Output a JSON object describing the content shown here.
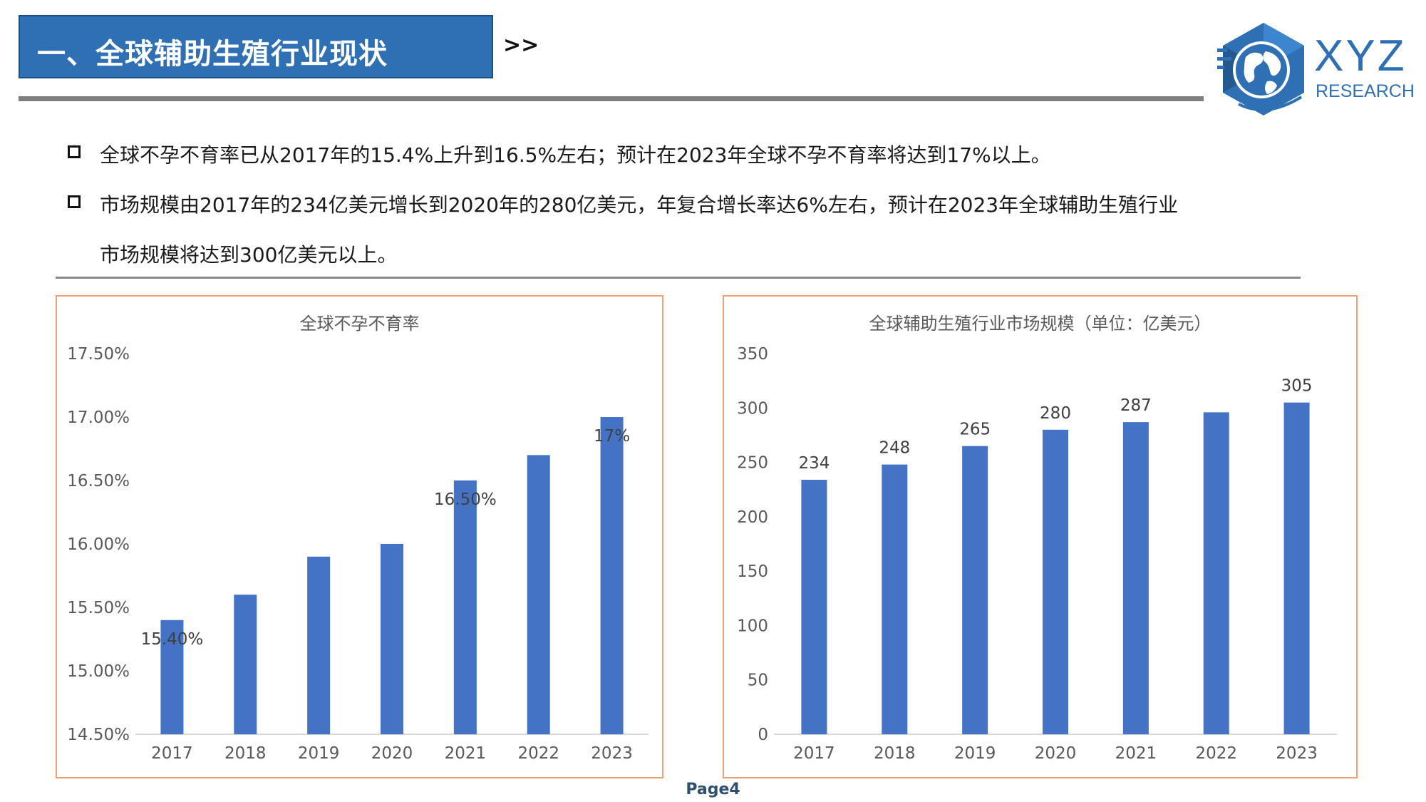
{
  "header": {
    "title": "一、全球辅助生殖行业现状",
    "arrow": ">>"
  },
  "logo": {
    "name": "XYZ",
    "subtitle": "RESEARCH",
    "icon": "globe-hexagon-icon"
  },
  "bullets": [
    {
      "text": "全球不孕不育率已从2017年的15.4%上升到16.5%左右；预计在2023年全球不孕不育率将达到17%以上。"
    },
    {
      "text": "市场规模由2017年的234亿美元增长到2020年的280亿美元，年复合增长率达6%左右，预计在2023年全球辅助生殖行业",
      "continuation": "市场规模将达到300亿美元以上。"
    }
  ],
  "colors": {
    "accent": "#2f6fb4",
    "bar": "#4472c4",
    "chart_border": "#f0a073"
  },
  "footer": {
    "page": "Page4"
  },
  "chart_data": [
    {
      "type": "bar",
      "title": "全球不孕不育率",
      "categories": [
        "2017",
        "2018",
        "2019",
        "2020",
        "2021",
        "2022",
        "2023"
      ],
      "values": [
        15.4,
        15.6,
        15.9,
        16.0,
        16.5,
        16.7,
        17.0
      ],
      "ylim": [
        14.5,
        17.5
      ],
      "yticks": [
        "14.50%",
        "15.00%",
        "15.50%",
        "16.00%",
        "16.50%",
        "17.00%",
        "17.50%"
      ],
      "data_labels": [
        "15.40%",
        "",
        "",
        "",
        "16.50%",
        "",
        "17%"
      ],
      "xlabel": "",
      "ylabel": "",
      "grid": false,
      "legend": "none"
    },
    {
      "type": "bar",
      "title": "全球辅助生殖行业市场规模（单位：亿美元）",
      "categories": [
        "2017",
        "2018",
        "2019",
        "2020",
        "2021",
        "2022",
        "2023"
      ],
      "values": [
        234,
        248,
        265,
        280,
        287,
        296,
        305
      ],
      "ylim": [
        0,
        350
      ],
      "yticks": [
        "0",
        "50",
        "100",
        "150",
        "200",
        "250",
        "300",
        "350"
      ],
      "data_labels": [
        "234",
        "248",
        "265",
        "280",
        "287",
        "",
        "305"
      ],
      "xlabel": "",
      "ylabel": "",
      "grid": false,
      "legend": "none"
    }
  ]
}
